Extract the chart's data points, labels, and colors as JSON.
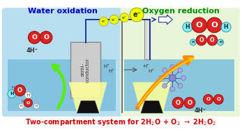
{
  "bg_color": "#ffffff",
  "left_bg": "#b8dff0",
  "right_bg": "#e8f5d8",
  "water_color": "#7bbfdd",
  "title_left": "Water oxidation",
  "title_right": "Oxygen reduction",
  "title_left_color": "#0000bb",
  "title_right_color": "#008800",
  "bottom_text_color": "#cc0000",
  "semiconductor_label": "semi-\nconductor",
  "electron_color": "#eeff00",
  "electron_border": "#aaaa00",
  "arrow_green": "#55ee00",
  "arrow_orange_start": "#ffdd00",
  "arrow_orange_end": "#ff8800",
  "lamp_color": "#111111",
  "lamp_light": "#ffff99",
  "o_color": "#dd2222",
  "o_border": "#991111",
  "h_cyan_color": "#88eeff",
  "h_cyan_border": "#228888",
  "h_white_color": "#f0f0f0",
  "h_white_border": "#999999",
  "wire_color": "#223399",
  "sc_face": "#cccccc",
  "sc_edge": "#888888"
}
